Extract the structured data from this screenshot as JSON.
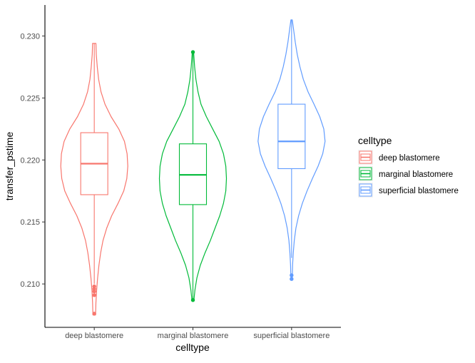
{
  "chart_data": {
    "type": "violin",
    "xlabel": "celltype",
    "ylabel": "transfer_pstime",
    "ylim": [
      0.2065,
      0.2325
    ],
    "yticks": [
      0.21,
      0.215,
      0.22,
      0.225,
      0.23
    ],
    "ytick_labels": [
      "0.210",
      "0.215",
      "0.220",
      "0.225",
      "0.230"
    ],
    "grid": false,
    "legend": {
      "title": "celltype",
      "position": "right"
    },
    "categories": [
      "deep blastomere",
      "marginal blastomere",
      "superficial blastomere"
    ],
    "series": [
      {
        "name": "deep blastomere",
        "color": "#F8766D",
        "box": {
          "q1": 0.2172,
          "median": 0.2197,
          "q3": 0.2222,
          "whisker_low": 0.21,
          "whisker_high": 0.2294
        },
        "outliers": [
          0.2098,
          0.2096,
          0.2094,
          0.2091,
          0.2076
        ],
        "density": [
          [
            0.2075,
            0.04
          ],
          [
            0.2085,
            0.05
          ],
          [
            0.2095,
            0.07
          ],
          [
            0.2105,
            0.1
          ],
          [
            0.2115,
            0.14
          ],
          [
            0.2125,
            0.19
          ],
          [
            0.2135,
            0.26
          ],
          [
            0.2145,
            0.37
          ],
          [
            0.2155,
            0.52
          ],
          [
            0.2165,
            0.71
          ],
          [
            0.2175,
            0.88
          ],
          [
            0.2185,
            0.97
          ],
          [
            0.2195,
            1.0
          ],
          [
            0.2205,
            0.98
          ],
          [
            0.2215,
            0.9
          ],
          [
            0.2225,
            0.73
          ],
          [
            0.2235,
            0.5
          ],
          [
            0.2245,
            0.32
          ],
          [
            0.2255,
            0.2
          ],
          [
            0.2265,
            0.13
          ],
          [
            0.2275,
            0.09
          ],
          [
            0.2285,
            0.06
          ],
          [
            0.2294,
            0.05
          ]
        ]
      },
      {
        "name": "marginal blastomere",
        "color": "#00BA38",
        "box": {
          "q1": 0.2164,
          "median": 0.2188,
          "q3": 0.2213,
          "whisker_low": 0.2088,
          "whisker_high": 0.2288
        },
        "outliers": [
          0.2287,
          0.2087
        ],
        "density": [
          [
            0.2087,
            0.03
          ],
          [
            0.2095,
            0.06
          ],
          [
            0.2105,
            0.12
          ],
          [
            0.2115,
            0.22
          ],
          [
            0.2125,
            0.36
          ],
          [
            0.2135,
            0.52
          ],
          [
            0.2145,
            0.66
          ],
          [
            0.2155,
            0.8
          ],
          [
            0.2165,
            0.91
          ],
          [
            0.2175,
            0.98
          ],
          [
            0.2185,
            1.0
          ],
          [
            0.2195,
            0.98
          ],
          [
            0.2205,
            0.91
          ],
          [
            0.2215,
            0.78
          ],
          [
            0.2225,
            0.59
          ],
          [
            0.2235,
            0.4
          ],
          [
            0.2245,
            0.24
          ],
          [
            0.2255,
            0.15
          ],
          [
            0.2265,
            0.09
          ],
          [
            0.2275,
            0.05
          ],
          [
            0.2285,
            0.025
          ],
          [
            0.2288,
            0.02
          ]
        ]
      },
      {
        "name": "superficial blastomere",
        "color": "#619CFF",
        "box": {
          "q1": 0.2193,
          "median": 0.2215,
          "q3": 0.2245,
          "whisker_low": 0.2121,
          "whisker_high": 0.2313
        },
        "outliers": [
          0.2107,
          0.2104
        ],
        "density": [
          [
            0.2104,
            0.02
          ],
          [
            0.2115,
            0.03
          ],
          [
            0.2125,
            0.05
          ],
          [
            0.2135,
            0.08
          ],
          [
            0.2145,
            0.13
          ],
          [
            0.2155,
            0.21
          ],
          [
            0.2165,
            0.32
          ],
          [
            0.2175,
            0.46
          ],
          [
            0.2185,
            0.62
          ],
          [
            0.2195,
            0.79
          ],
          [
            0.2205,
            0.93
          ],
          [
            0.2215,
            1.0
          ],
          [
            0.2225,
            0.96
          ],
          [
            0.2235,
            0.84
          ],
          [
            0.2245,
            0.67
          ],
          [
            0.2255,
            0.49
          ],
          [
            0.2265,
            0.35
          ],
          [
            0.2275,
            0.25
          ],
          [
            0.2285,
            0.17
          ],
          [
            0.2295,
            0.11
          ],
          [
            0.2305,
            0.06
          ],
          [
            0.2313,
            0.02
          ]
        ]
      }
    ]
  }
}
